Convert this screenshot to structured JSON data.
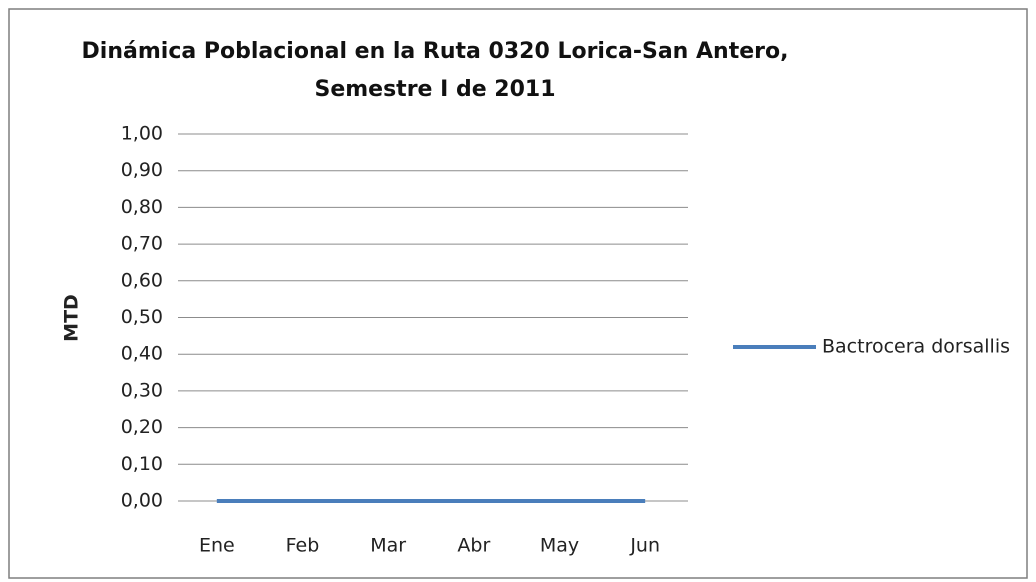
{
  "chart_data": {
    "type": "line",
    "title": [
      "Dinámica Poblacional en la Ruta 0320 Lorica-San Antero,",
      "Semestre I de 2011"
    ],
    "ylabel": "MTD",
    "categories": [
      "Ene",
      "Feb",
      "Mar",
      "Abr",
      "May",
      "Jun"
    ],
    "series": [
      {
        "name": "Bactrocera dorsallis",
        "color": "#4a7ebb",
        "values": [
          0,
          0,
          0,
          0,
          0,
          0
        ]
      }
    ],
    "ylim": [
      0,
      1
    ],
    "yticks": [
      {
        "value": 0,
        "label": "0,00"
      },
      {
        "value": 0.1,
        "label": "0,10"
      },
      {
        "value": 0.2,
        "label": "0,20"
      },
      {
        "value": 0.3,
        "label": "0,30"
      },
      {
        "value": 0.4,
        "label": "0,40"
      },
      {
        "value": 0.5,
        "label": "0,50"
      },
      {
        "value": 0.6,
        "label": "0,60"
      },
      {
        "value": 0.7,
        "label": "0,70"
      },
      {
        "value": 0.8,
        "label": "0,80"
      },
      {
        "value": 0.9,
        "label": "0,90"
      },
      {
        "value": 1,
        "label": "1,00"
      }
    ],
    "grid": true,
    "legend": "right"
  }
}
